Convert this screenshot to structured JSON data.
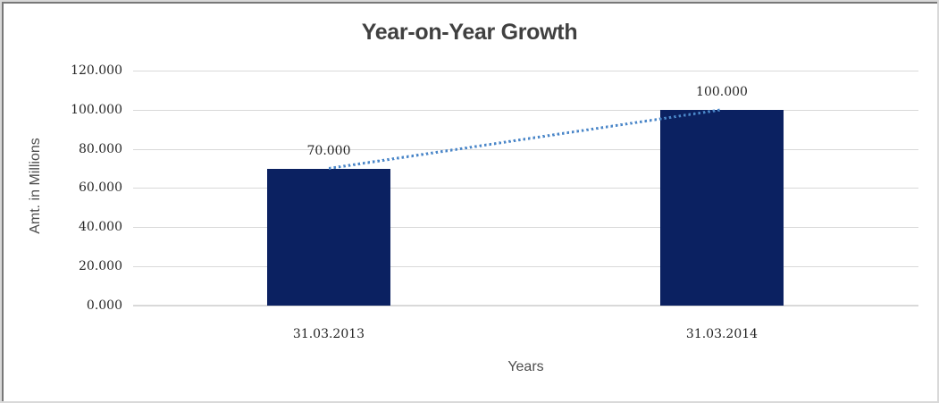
{
  "chart": {
    "title": "Year-on-Year Growth",
    "y_axis": {
      "title": "Amt. in Millions",
      "ticks": [
        "120.000",
        "100.000",
        "80.000",
        "60.000",
        "40.000",
        "20.000",
        "0.000"
      ]
    },
    "x_axis": {
      "title": "Years",
      "categories": [
        "31.03.2013",
        "31.03.2014"
      ]
    },
    "colors": {
      "bar": "#0b2161",
      "trendline": "#4a86c8",
      "gridline": "#d9d9d9",
      "title_text": "#404040",
      "tick_text": "#262626",
      "axis_title_text": "#4d4d4d"
    }
  },
  "chart_data": {
    "type": "bar",
    "title": "Year-on-Year Growth",
    "categories": [
      "31.03.2013",
      "31.03.2014"
    ],
    "values": [
      70,
      100
    ],
    "data_labels": [
      "70.000",
      "100.000"
    ],
    "xlabel": "Years",
    "ylabel": "Amt. in Millions",
    "ylim": [
      0,
      120
    ],
    "yticks": [
      0,
      20,
      40,
      60,
      80,
      100,
      120
    ],
    "ytick_labels": [
      "0.000",
      "20.000",
      "40.000",
      "60.000",
      "80.000",
      "100.000",
      "120.000"
    ],
    "grid": true,
    "legend": false,
    "bar_color": "#0b2161",
    "trendline": {
      "style": "dotted",
      "color": "#4a86c8",
      "from_value": 70,
      "to_value": 100
    }
  }
}
